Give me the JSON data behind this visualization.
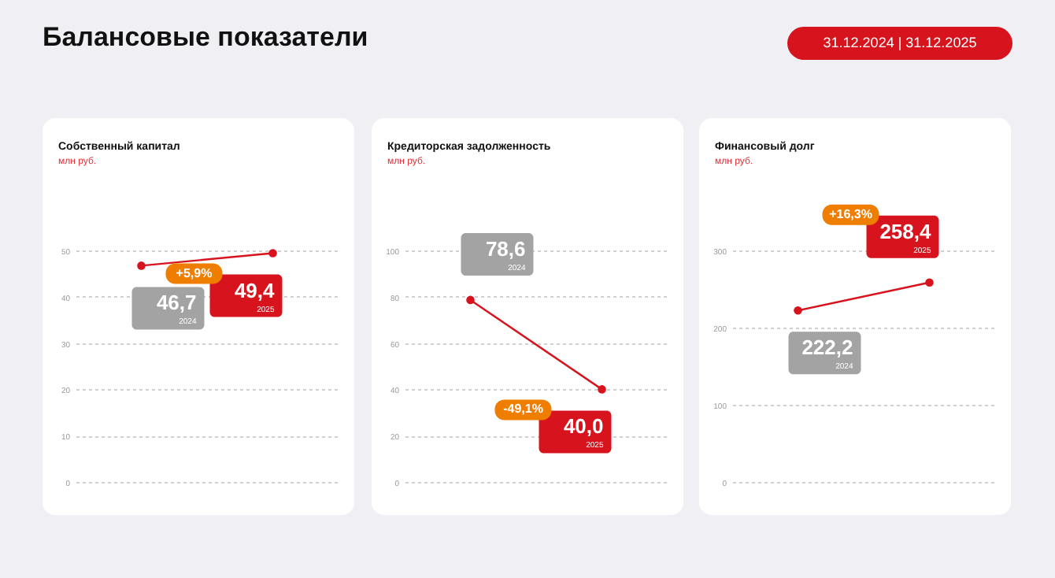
{
  "chart_data": [
    {
      "type": "line",
      "title": "Собственный капитал",
      "subtitle": "млн руб.",
      "categories": [
        null,
        null
      ],
      "series": [
        {
          "color": "#d7141e",
          "values": [
            46.7,
            49.4
          ],
          "value_labels": [
            "46,7",
            "49,4"
          ]
        }
      ],
      "annotations": [
        "Балансовые показатели",
        "31.12.2024 | 31.12.2025",
        "2024",
        "2025",
        "+5,9%"
      ],
      "ylim": [
        0,
        50
      ],
      "yticks": [
        0,
        10,
        20,
        30,
        40,
        50
      ],
      "grid": "y",
      "marker": "circle",
      "tick_labels": "y"
    },
    {
      "type": "line",
      "title": "Кредиторская задолженность",
      "subtitle": "млн руб.",
      "categories": [
        null,
        null
      ],
      "series": [
        {
          "color": "#d7141e",
          "values": [
            78.6,
            40.0
          ],
          "value_labels": [
            "78,6",
            "40,0"
          ]
        }
      ],
      "annotations": [
        "2024",
        "2025",
        "-49,1%"
      ],
      "ylim": [
        0,
        100
      ],
      "yticks": [
        0,
        20,
        40,
        60,
        80,
        100
      ],
      "grid": "y",
      "marker": "circle",
      "tick_labels": "y"
    },
    {
      "type": "line",
      "title": "Финансовый долг",
      "subtitle": "млн руб.",
      "categories": [
        null,
        null
      ],
      "series": [
        {
          "color": "#d7141e",
          "values": [
            222.2,
            258.4
          ],
          "value_labels": [
            "222,2",
            "258,4"
          ]
        }
      ],
      "annotations": [
        "2024",
        "2025",
        "+16,3%"
      ],
      "ylim": [
        0,
        300
      ],
      "yticks": [
        0,
        100,
        200,
        300
      ],
      "grid": "y",
      "marker": "circle",
      "tick_labels": "y"
    }
  ]
}
